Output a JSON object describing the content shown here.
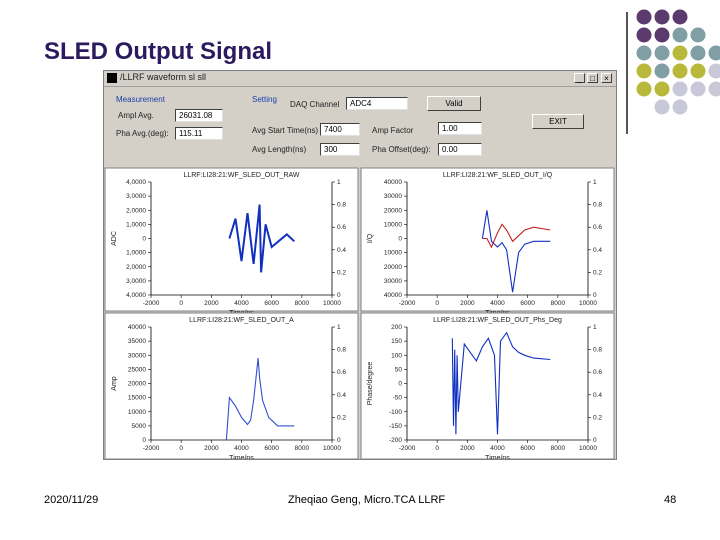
{
  "slide": {
    "title": "SLED Output Signal",
    "footer_date": "2020/11/29",
    "footer_author": "Zheqiao Geng, Micro.TCA LLRF",
    "page_number": "48"
  },
  "window": {
    "title": "/LLRF waveform sl sll",
    "minimize": "_",
    "maximize": "□",
    "close": "×"
  },
  "measurement": {
    "section_label": "Measurement",
    "ampl_avg_label": "Ampl Avg.",
    "ampl_avg_value": "26031.08",
    "pha_avg_label": "Pha Avg.(deg):",
    "pha_avg_value": "115.11"
  },
  "setting": {
    "section_label": "Setting",
    "daq_channel_label": "DAQ Channel",
    "daq_channel_value": "ADC4",
    "valid_button": "Valid",
    "exit_button": "EXIT",
    "avg_start_label": "Avg Start Time(ns)",
    "avg_start_value": "7400",
    "avg_length_label": "Avg Length(ns)",
    "avg_length_value": "300",
    "amp_factor_label": "Amp Factor",
    "amp_factor_value": "1.00",
    "pha_offset_label": "Pha Offset(deg):",
    "pha_offset_value": "0.00"
  },
  "chart_data": [
    {
      "type": "line",
      "title": "LLRF:LI28:21:WF_SLED_OUT_RAW",
      "xlabel": "Time/ns",
      "ylabel": "ADC",
      "x_ticks": [
        "-2000",
        "0",
        "2000",
        "4000",
        "6000",
        "8000",
        "10000"
      ],
      "y_ticks": [
        "4,0000",
        "3,0000",
        "2,0000",
        "1,0000",
        "0",
        "1,0000",
        "2,0000",
        "3,0000",
        "4,0000"
      ],
      "y2_ticks": [
        "1",
        "0.8",
        "0.6",
        "0.4",
        "0.2",
        "0"
      ],
      "xlim": [
        -2000,
        10000
      ],
      "ylim": [
        -40000,
        40000
      ],
      "series": [
        {
          "color": "#1030c0",
          "points": [
            [
              3200,
              0
            ],
            [
              3600,
              14000
            ],
            [
              4000,
              -16000
            ],
            [
              4400,
              18000
            ],
            [
              4800,
              -18000
            ],
            [
              5200,
              24000
            ],
            [
              5300,
              -24000
            ],
            [
              5600,
              10000
            ],
            [
              6000,
              -6000
            ],
            [
              7000,
              3000
            ],
            [
              7500,
              -2000
            ]
          ]
        }
      ]
    },
    {
      "type": "line",
      "title": "LLRF:LI28:21:WF_SLED_OUT_I/Q",
      "xlabel": "Time/ns",
      "ylabel": "I/Q",
      "x_ticks": [
        "-2000",
        "0",
        "2000",
        "4000",
        "6000",
        "8000",
        "10000"
      ],
      "y_ticks": [
        "40000",
        "30000",
        "20000",
        "10000",
        "0",
        "10000",
        "20000",
        "30000",
        "40000"
      ],
      "y2_ticks": [
        "1",
        "0.8",
        "0.6",
        "0.4",
        "0.2",
        "0"
      ],
      "xlim": [
        -2000,
        10000
      ],
      "ylim": [
        -40000,
        40000
      ],
      "series": [
        {
          "color": "#1030c0",
          "points": [
            [
              3000,
              0
            ],
            [
              3300,
              20000
            ],
            [
              3600,
              -2000
            ],
            [
              4000,
              -6000
            ],
            [
              4300,
              -3000
            ],
            [
              4600,
              -8000
            ],
            [
              5000,
              -38000
            ],
            [
              5400,
              -10000
            ],
            [
              5800,
              -4000
            ],
            [
              6400,
              -2000
            ],
            [
              7500,
              -2000
            ]
          ]
        },
        {
          "color": "#c02020",
          "points": [
            [
              3000,
              0
            ],
            [
              3300,
              0
            ],
            [
              3600,
              -6000
            ],
            [
              4000,
              4000
            ],
            [
              4300,
              10000
            ],
            [
              4600,
              6000
            ],
            [
              5000,
              -2000
            ],
            [
              5400,
              2000
            ],
            [
              5800,
              6000
            ],
            [
              6400,
              8000
            ],
            [
              7500,
              6000
            ]
          ]
        }
      ]
    },
    {
      "type": "line",
      "title": "LLRF:LI28:21:WF_SLED_OUT_A",
      "xlabel": "Time/ns",
      "ylabel": "Amp",
      "x_ticks": [
        "-2000",
        "0",
        "2000",
        "4000",
        "6000",
        "8000",
        "10000"
      ],
      "y_ticks": [
        "40000",
        "35000",
        "30000",
        "25000",
        "20000",
        "15000",
        "10000",
        "5000",
        "0"
      ],
      "y2_ticks": [
        "1",
        "0.8",
        "0.6",
        "0.4",
        "0.2",
        "0"
      ],
      "xlim": [
        -2000,
        10000
      ],
      "ylim": [
        0,
        40000
      ],
      "series": [
        {
          "color": "#3050d0",
          "points": [
            [
              3000,
              0
            ],
            [
              3200,
              15000
            ],
            [
              3600,
              12000
            ],
            [
              4000,
              8000
            ],
            [
              4400,
              5500
            ],
            [
              4600,
              7000
            ],
            [
              4800,
              14000
            ],
            [
              5000,
              24000
            ],
            [
              5100,
              29000
            ],
            [
              5200,
              22000
            ],
            [
              5400,
              14000
            ],
            [
              5800,
              8000
            ],
            [
              6400,
              5000
            ],
            [
              7500,
              5000
            ]
          ]
        }
      ]
    },
    {
      "type": "line",
      "title": "LLRF:LI28:21:WF_SLED_OUT_Phs_Deg",
      "xlabel": "Time/ns",
      "ylabel": "Phase/degree",
      "x_ticks": [
        "-2000",
        "0",
        "2000",
        "4000",
        "6000",
        "8000",
        "10000"
      ],
      "y_ticks": [
        "200",
        "150",
        "100",
        "50",
        "0",
        "-50",
        "-100",
        "-150",
        "-200"
      ],
      "y2_ticks": [
        "1",
        "0.8",
        "0.6",
        "0.4",
        "0.2",
        "0"
      ],
      "xlim": [
        -2000,
        10000
      ],
      "ylim": [
        -200,
        200
      ],
      "series": [
        {
          "color": "#1030c0",
          "points": [
            [
              1000,
              160
            ],
            [
              1080,
              -150
            ],
            [
              1160,
              120
            ],
            [
              1240,
              -180
            ],
            [
              1320,
              100
            ],
            [
              1400,
              -100
            ],
            [
              1800,
              140
            ],
            [
              2200,
              110
            ],
            [
              2600,
              80
            ],
            [
              3000,
              130
            ],
            [
              3400,
              160
            ],
            [
              3800,
              100
            ],
            [
              4000,
              -180
            ],
            [
              4200,
              150
            ],
            [
              4600,
              180
            ],
            [
              5000,
              130
            ],
            [
              5400,
              110
            ],
            [
              5800,
              100
            ],
            [
              6400,
              90
            ],
            [
              7500,
              85
            ]
          ]
        }
      ]
    }
  ]
}
